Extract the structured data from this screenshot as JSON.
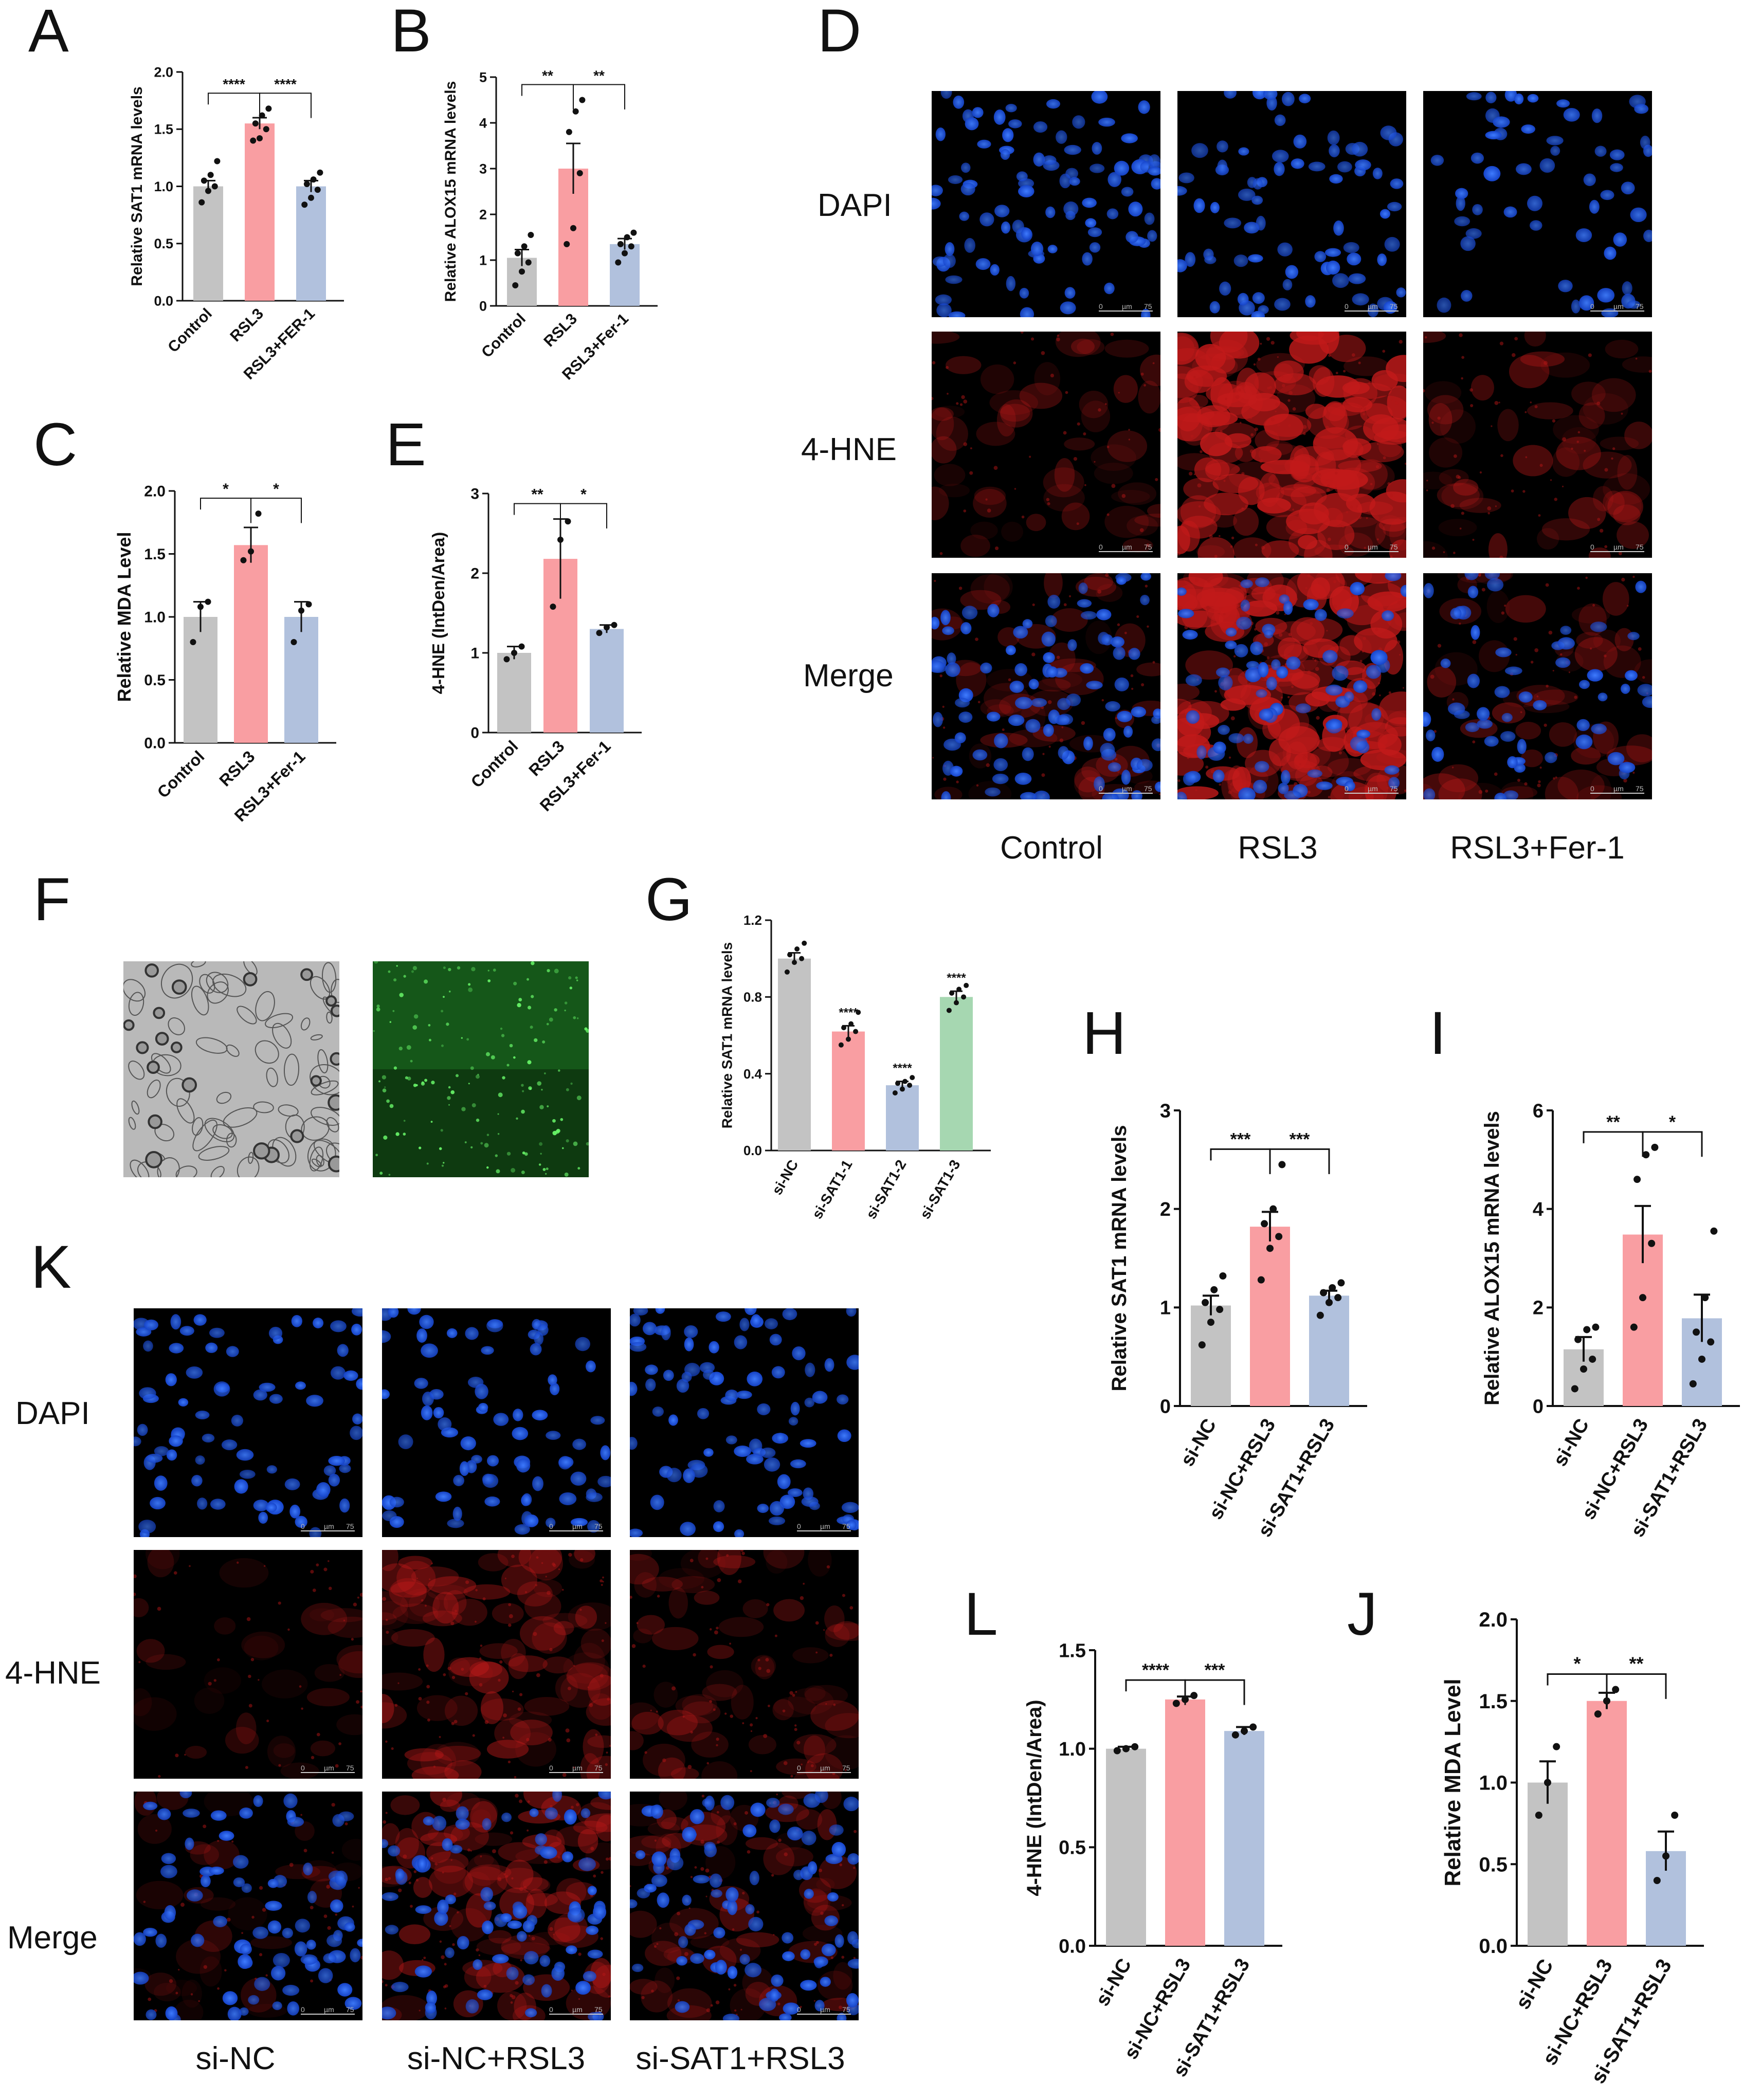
{
  "colors": {
    "gray": "#c3c3c3",
    "pink": "#f99ea2",
    "blue": "#b1c1dd",
    "green": "#a6d7b1"
  },
  "panel_labels": {
    "A": "A",
    "B": "B",
    "C": "C",
    "D": "D",
    "E": "E",
    "F": "F",
    "G": "G",
    "H": "H",
    "I": "I",
    "J": "J",
    "K": "K",
    "L": "L"
  },
  "panel_D": {
    "rows": [
      "DAPI",
      "4-HNE",
      "Merge"
    ],
    "columns": [
      "Control",
      "RSL3",
      "RSL3+Fer-1"
    ],
    "scale_bar": {
      "left": "0",
      "unit": "µm",
      "right": "75"
    }
  },
  "panel_K": {
    "rows": [
      "DAPI",
      "4-HNE",
      "Merge"
    ],
    "columns": [
      "si-NC",
      "si-NC+RSL3",
      "si-SAT1+RSL3"
    ],
    "scale_bar": {
      "left": "0",
      "unit": "µm",
      "right": "75"
    }
  },
  "panel_F": {
    "images": [
      "brightfield",
      "green-fluorescence"
    ]
  },
  "chart_data": [
    {
      "panel": "A",
      "type": "bar",
      "ylabel": "Relative SAT1 mRNA levels",
      "categories": [
        "Control",
        "RSL3",
        "RSL3+FER-1"
      ],
      "values": [
        1.0,
        1.55,
        1.0
      ],
      "errors": [
        0.05,
        0.05,
        0.05
      ],
      "points": [
        [
          0.86,
          0.96,
          1.0,
          1.05,
          1.1,
          1.22
        ],
        [
          1.4,
          1.42,
          1.5,
          1.55,
          1.62,
          1.68
        ],
        [
          0.84,
          0.9,
          0.97,
          1.02,
          1.06,
          1.12
        ]
      ],
      "ylim": [
        0,
        2.0
      ],
      "yticks": [
        "0.0",
        "0.5",
        "1.0",
        "1.5",
        "2.0"
      ],
      "significance": [
        {
          "from": 0,
          "to": 1,
          "label": "****"
        },
        {
          "from": 1,
          "to": 2,
          "label": "****"
        }
      ]
    },
    {
      "panel": "B",
      "type": "bar",
      "ylabel": "Relative ALOX15 mRNA levels",
      "categories": [
        "Control",
        "RSL3",
        "RSL3+Fer-1"
      ],
      "values": [
        1.05,
        3.0,
        1.35
      ],
      "errors": [
        0.18,
        0.55,
        0.12
      ],
      "points": [
        [
          0.45,
          0.75,
          0.95,
          1.15,
          1.3,
          1.55
        ],
        [
          1.35,
          1.7,
          2.9,
          3.8,
          4.25,
          4.5
        ],
        [
          0.95,
          1.15,
          1.3,
          1.35,
          1.5,
          1.6
        ]
      ],
      "ylim": [
        0,
        5
      ],
      "yticks": [
        "0",
        "1",
        "2",
        "3",
        "4",
        "5"
      ],
      "significance": [
        {
          "from": 0,
          "to": 1,
          "label": "**"
        },
        {
          "from": 1,
          "to": 2,
          "label": "**"
        }
      ]
    },
    {
      "panel": "C",
      "type": "bar",
      "ylabel": "Relative MDA Level",
      "categories": [
        "Control",
        "RSL3",
        "RSL3+Fer-1"
      ],
      "values": [
        1.0,
        1.57,
        1.0
      ],
      "errors": [
        0.12,
        0.14,
        0.12
      ],
      "points": [
        [
          0.8,
          1.08,
          1.12
        ],
        [
          1.45,
          1.52,
          1.82
        ],
        [
          0.8,
          1.05,
          1.1
        ]
      ],
      "ylim": [
        0,
        2.0
      ],
      "yticks": [
        "0.0",
        "0.5",
        "1.0",
        "1.5",
        "2.0"
      ],
      "significance": [
        {
          "from": 0,
          "to": 1,
          "label": "*"
        },
        {
          "from": 1,
          "to": 2,
          "label": "*"
        }
      ]
    },
    {
      "panel": "E",
      "type": "bar",
      "ylabel": "4-HNE (IntDen/Area)",
      "categories": [
        "Control",
        "RSL3",
        "RSL3+Fer-1"
      ],
      "values": [
        1.0,
        2.18,
        1.3
      ],
      "errors": [
        0.08,
        0.5,
        0.05
      ],
      "points": [
        [
          0.92,
          1.0,
          1.08
        ],
        [
          1.58,
          2.42,
          2.65
        ],
        [
          1.25,
          1.32,
          1.35
        ]
      ],
      "ylim": [
        0,
        3
      ],
      "yticks": [
        "0",
        "1",
        "2",
        "3"
      ],
      "significance": [
        {
          "from": 0,
          "to": 1,
          "label": "**"
        },
        {
          "from": 1,
          "to": 2,
          "label": "*"
        }
      ]
    },
    {
      "panel": "G",
      "type": "bar",
      "ylabel": "Relative SAT1 mRNA levels",
      "categories": [
        "si-NC",
        "si-SAT1-1",
        "si-SAT1-2",
        "si-SAT1-3"
      ],
      "values": [
        1.0,
        0.62,
        0.34,
        0.8
      ],
      "errors": [
        0.03,
        0.03,
        0.02,
        0.03
      ],
      "points": [
        [
          0.93,
          0.98,
          1.0,
          1.02,
          1.05,
          1.08
        ],
        [
          0.55,
          0.58,
          0.62,
          0.64,
          0.66,
          0.72
        ],
        [
          0.3,
          0.32,
          0.34,
          0.35,
          0.36,
          0.38
        ],
        [
          0.73,
          0.77,
          0.8,
          0.82,
          0.84,
          0.86
        ]
      ],
      "ylim": [
        0,
        1.2
      ],
      "yticks": [
        "0.0",
        "0.4",
        "0.8",
        "1.2"
      ],
      "stars": [
        "",
        "****",
        "****",
        "****"
      ]
    },
    {
      "panel": "H",
      "type": "bar",
      "ylabel": "Relative SAT1 mRNA levels",
      "categories": [
        "si-NC",
        "si-NC+RSL3",
        "si-SAT1+RSL3"
      ],
      "values": [
        1.02,
        1.82,
        1.12
      ],
      "errors": [
        0.1,
        0.15,
        0.05
      ],
      "points": [
        [
          0.62,
          0.85,
          0.98,
          1.05,
          1.18,
          1.32
        ],
        [
          1.28,
          1.6,
          1.72,
          1.85,
          2.0,
          2.45
        ],
        [
          0.92,
          1.05,
          1.1,
          1.15,
          1.2,
          1.25
        ]
      ],
      "ylim": [
        0,
        3
      ],
      "yticks": [
        "0",
        "1",
        "2",
        "3"
      ],
      "significance": [
        {
          "from": 0,
          "to": 1,
          "label": "***"
        },
        {
          "from": 1,
          "to": 2,
          "label": "***"
        }
      ]
    },
    {
      "panel": "I",
      "type": "bar",
      "ylabel": "Relative ALOX15 mRNA levels",
      "categories": [
        "si-NC",
        "si-NC+RSL3",
        "si-SAT1+RSL3"
      ],
      "values": [
        1.15,
        3.48,
        1.78
      ],
      "errors": [
        0.25,
        0.58,
        0.48
      ],
      "points": [
        [
          0.35,
          0.75,
          0.95,
          1.35,
          1.55,
          1.6
        ],
        [
          1.6,
          2.2,
          3.3,
          4.6,
          5.1,
          5.25
        ],
        [
          0.45,
          0.95,
          1.3,
          1.5,
          2.2,
          3.55
        ]
      ],
      "ylim": [
        0,
        6
      ],
      "yticks": [
        "0",
        "2",
        "4",
        "6"
      ],
      "significance": [
        {
          "from": 0,
          "to": 1,
          "label": "**"
        },
        {
          "from": 1,
          "to": 2,
          "label": "*"
        }
      ]
    },
    {
      "panel": "L",
      "type": "bar",
      "ylabel": "4-HNE (IntDen/Area)",
      "categories": [
        "si-NC",
        "si-NC+RSL3",
        "si-SAT1+RSL3"
      ],
      "values": [
        1.0,
        1.25,
        1.09
      ],
      "errors": [
        0.01,
        0.015,
        0.02
      ],
      "points": [
        [
          0.99,
          1.0,
          1.01
        ],
        [
          1.23,
          1.25,
          1.27
        ],
        [
          1.07,
          1.09,
          1.11
        ]
      ],
      "ylim": [
        0,
        1.5
      ],
      "yticks": [
        "0.0",
        "0.5",
        "1.0",
        "1.5"
      ],
      "significance": [
        {
          "from": 0,
          "to": 1,
          "label": "****"
        },
        {
          "from": 1,
          "to": 2,
          "label": "***"
        }
      ]
    },
    {
      "panel": "J",
      "type": "bar",
      "ylabel": "Relative MDA Level",
      "categories": [
        "si-NC",
        "si-NC+RSL3",
        "si-SAT1+RSL3"
      ],
      "values": [
        1.0,
        1.5,
        0.58
      ],
      "errors": [
        0.13,
        0.05,
        0.12
      ],
      "points": [
        [
          0.8,
          1.0,
          1.22
        ],
        [
          1.42,
          1.5,
          1.57
        ],
        [
          0.4,
          0.55,
          0.8
        ]
      ],
      "ylim": [
        0,
        2.0
      ],
      "yticks": [
        "0.0",
        "0.5",
        "1.0",
        "1.5",
        "2.0"
      ],
      "significance": [
        {
          "from": 0,
          "to": 1,
          "label": "*"
        },
        {
          "from": 1,
          "to": 2,
          "label": "**"
        }
      ]
    }
  ]
}
